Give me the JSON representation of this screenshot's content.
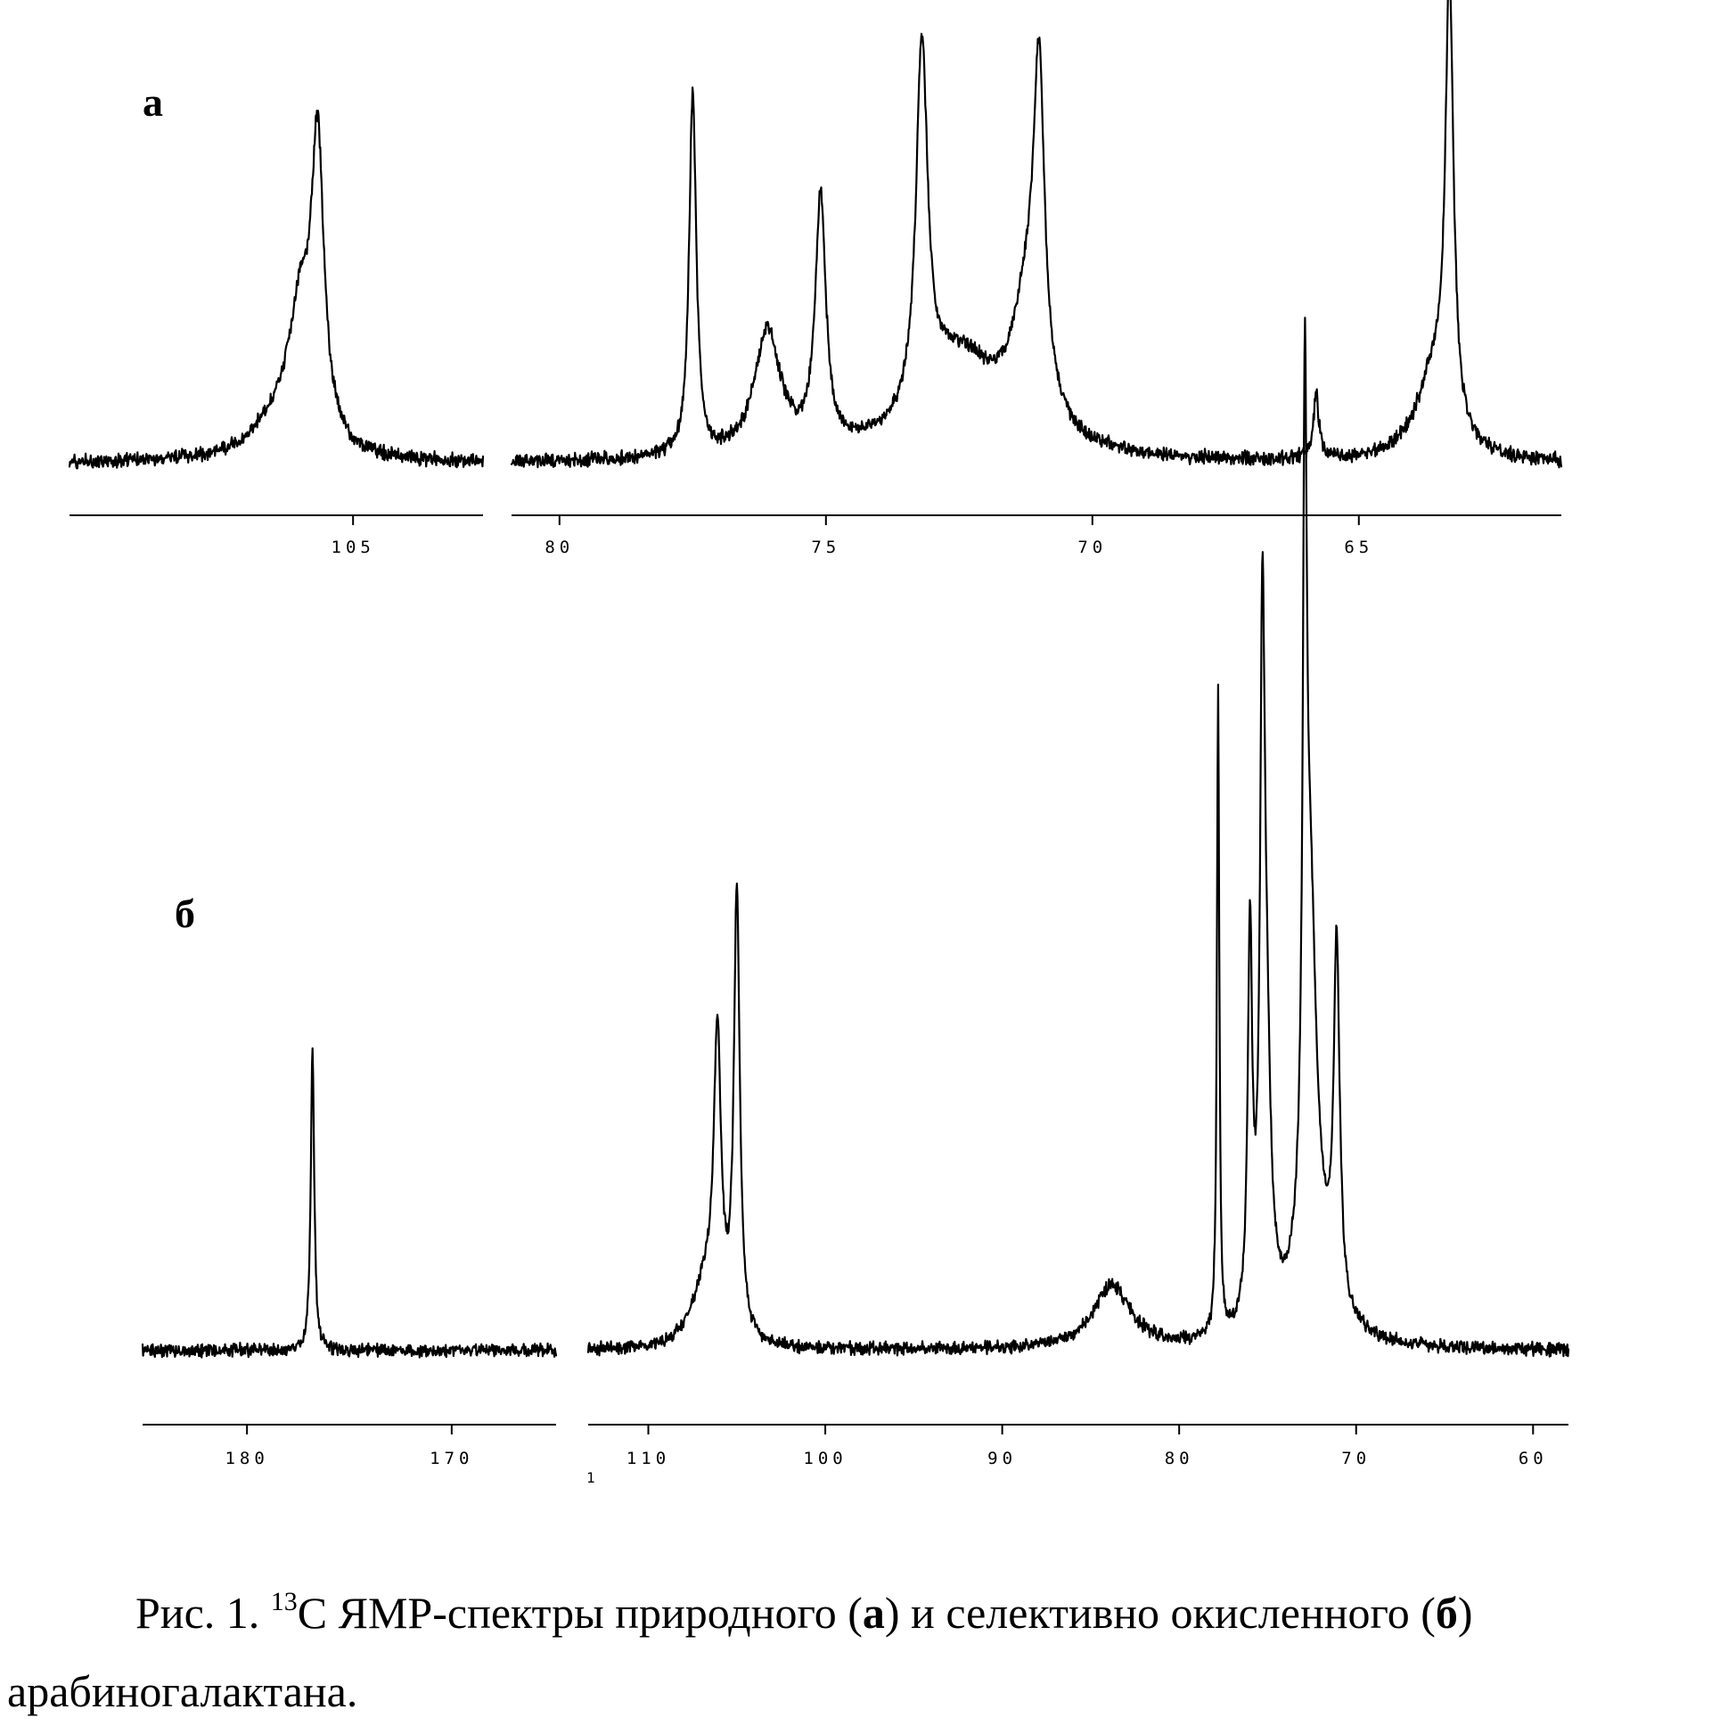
{
  "chart_data": [
    {
      "type": "line",
      "panel_label": "а",
      "x_unit": "ppm",
      "x_direction": "descending",
      "baseline": 1.0,
      "segments": [
        {
          "xlim": [
            109.8,
            102.8
          ],
          "ticks": [
            105
          ],
          "peaks": [
            {
              "ppm": 105.6,
              "height": 17.5,
              "width": 0.13
            },
            {
              "ppm": 105.9,
              "height": 7.0,
              "width": 0.22
            },
            {
              "ppm": 106.2,
              "height": 2.5,
              "width": 0.6
            }
          ]
        },
        {
          "xlim": [
            80.9,
            61.2
          ],
          "ticks": [
            80,
            75,
            70,
            65
          ],
          "peaks": [
            {
              "ppm": 77.5,
              "height": 22.0,
              "width": 0.08
            },
            {
              "ppm": 76.1,
              "height": 7.5,
              "width": 0.3
            },
            {
              "ppm": 75.1,
              "height": 15.0,
              "width": 0.12
            },
            {
              "ppm": 73.2,
              "height": 22.0,
              "width": 0.13
            },
            {
              "ppm": 72.5,
              "height": 6.0,
              "width": 0.9
            },
            {
              "ppm": 71.2,
              "height": 8.0,
              "width": 0.35
            },
            {
              "ppm": 71.0,
              "height": 18.0,
              "width": 0.12
            },
            {
              "ppm": 65.8,
              "height": 4.0,
              "width": 0.06
            },
            {
              "ppm": 63.3,
              "height": 27.0,
              "width": 0.09
            },
            {
              "ppm": 63.6,
              "height": 5.0,
              "width": 0.4
            }
          ]
        }
      ]
    },
    {
      "type": "line",
      "panel_label": "б",
      "x_unit": "ppm",
      "x_direction": "descending",
      "baseline": 1.0,
      "segments": [
        {
          "xlim": [
            185.1,
            164.9
          ],
          "ticks": [
            180,
            170
          ],
          "peaks": [
            {
              "ppm": 176.8,
              "height": 15.5,
              "width": 0.1
            }
          ]
        },
        {
          "xlim": [
            113.4,
            58.0
          ],
          "ticks": [
            110,
            100,
            90,
            80,
            70,
            60
          ],
          "peaks": [
            {
              "ppm": 106.1,
              "height": 14.5,
              "width": 0.25
            },
            {
              "ppm": 105.0,
              "height": 22.5,
              "width": 0.2
            },
            {
              "ppm": 106.8,
              "height": 3.0,
              "width": 0.9
            },
            {
              "ppm": 83.8,
              "height": 3.2,
              "width": 1.3
            },
            {
              "ppm": 77.8,
              "height": 33.0,
              "width": 0.08
            },
            {
              "ppm": 76.0,
              "height": 19.5,
              "width": 0.15
            },
            {
              "ppm": 75.3,
              "height": 29.0,
              "width": 0.15
            },
            {
              "ppm": 75.1,
              "height": 14.0,
              "width": 0.3
            },
            {
              "ppm": 72.9,
              "height": 37.0,
              "width": 0.13
            },
            {
              "ppm": 72.6,
              "height": 18.0,
              "width": 0.4
            },
            {
              "ppm": 72.3,
              "height": 4.0,
              "width": 1.2
            },
            {
              "ppm": 71.1,
              "height": 18.0,
              "width": 0.2
            }
          ]
        }
      ],
      "stray_label": "1"
    }
  ],
  "caption": {
    "fig_ref": "Рис. 1. ",
    "sup": "13",
    "text1": "С ЯМР-спектры природного (",
    "bold_a": "а",
    "text2": ") и селективно окисленного (",
    "bold_b": "б",
    "text3": ")",
    "line2": "арабиногалактана."
  },
  "colors": {
    "ink": "#000000",
    "paper": "#ffffff"
  }
}
